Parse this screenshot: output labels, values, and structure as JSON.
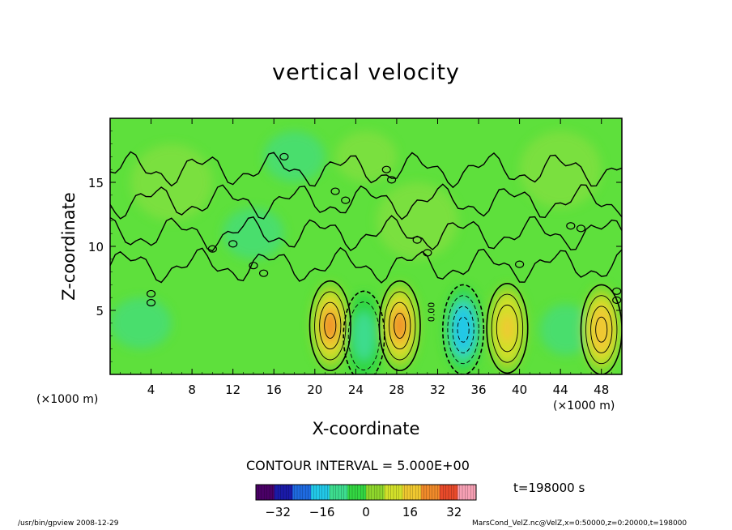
{
  "chart_data": {
    "type": "heatmap",
    "title": "vertical velocity",
    "xlabel": "X-coordinate",
    "ylabel": "Z-coordinate",
    "x_unit_label": "(×1000 m)",
    "y_unit_label": "(×1000 m)",
    "xlim": [
      0,
      50
    ],
    "ylim": [
      0,
      20
    ],
    "x_ticks": [
      4,
      8,
      12,
      16,
      20,
      24,
      28,
      32,
      36,
      40,
      44,
      48
    ],
    "y_ticks": [
      5,
      10,
      15
    ],
    "contour_interval_text": "CONTOUR INTERVAL = 5.000E+00",
    "colorbar": {
      "range": [
        -40,
        40
      ],
      "ticks": [
        -32,
        -16,
        0,
        16,
        32
      ],
      "colors": [
        "#4a0066",
        "#1a1aa8",
        "#1e6ae0",
        "#22c8e8",
        "#3ddc8e",
        "#33d642",
        "#8ed62c",
        "#d2e02a",
        "#f0c830",
        "#f08a2a",
        "#e84a2a",
        "#f6a0b4"
      ]
    },
    "features": [
      {
        "x": 21.5,
        "z": 3.8,
        "peak": 22,
        "label": "updraft"
      },
      {
        "x": 24.8,
        "z": 3.0,
        "peak": -9,
        "label": "downdraft"
      },
      {
        "x": 28.3,
        "z": 3.8,
        "peak": 20,
        "label": "updraft"
      },
      {
        "x": 34.5,
        "z": 3.5,
        "peak": -20,
        "label": "downdraft"
      },
      {
        "x": 38.8,
        "z": 3.6,
        "peak": 17,
        "label": "updraft"
      },
      {
        "x": 48.0,
        "z": 3.5,
        "peak": 18,
        "label": "updraft"
      }
    ],
    "contour_label_value": "0.00"
  },
  "annotations": {
    "time": "t=198000 s",
    "footer_left": "/usr/bin/gpview   2008-12-29",
    "footer_right": "MarsCond_VelZ.nc@VelZ,x=0:50000,z=0:20000,t=198000"
  }
}
